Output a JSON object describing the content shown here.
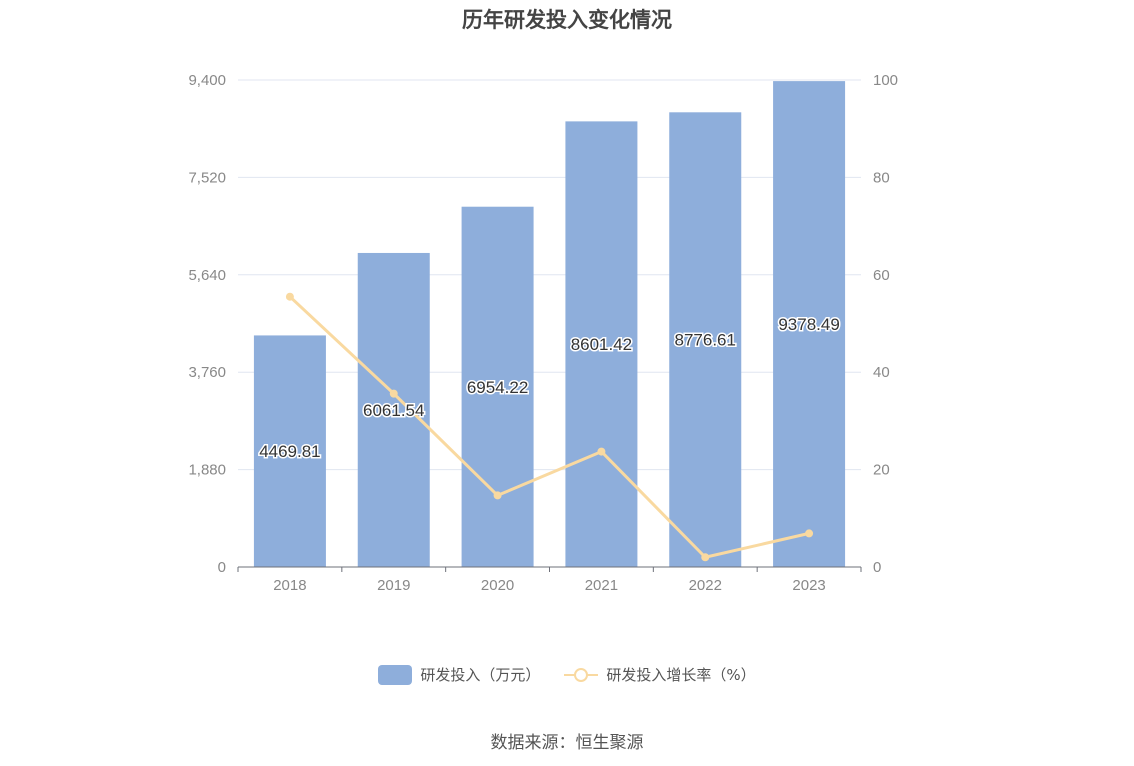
{
  "chart_data": {
    "type": "bar",
    "title": "历年研发投入变化情况",
    "categories": [
      "2018",
      "2019",
      "2020",
      "2021",
      "2022",
      "2023"
    ],
    "series": [
      {
        "name": "研发投入（万元）",
        "type": "bar",
        "axis": "left",
        "color": "#8eaedb",
        "values": [
          4469.81,
          6061.54,
          6954.22,
          8601.42,
          8776.61,
          9378.49
        ],
        "labels": [
          "4469.81",
          "6061.54",
          "6954.22",
          "8601.42",
          "8776.61",
          "9378.49"
        ]
      },
      {
        "name": "研发投入增长率（%）",
        "type": "line",
        "axis": "right",
        "color": "#f9d9a0",
        "values": [
          55.5,
          35.6,
          14.7,
          23.7,
          2.0,
          6.9
        ]
      }
    ],
    "y_left": {
      "ylim": [
        0,
        9400
      ],
      "ticks": [
        "0",
        "1,880",
        "3,760",
        "5,640",
        "7,520",
        "9,400"
      ]
    },
    "y_right": {
      "ylim": [
        0,
        100
      ],
      "ticks": [
        "0",
        "20",
        "40",
        "60",
        "80",
        "100"
      ]
    },
    "grid": true,
    "legend_position": "bottom"
  },
  "source_text": "数据来源：恒生聚源"
}
